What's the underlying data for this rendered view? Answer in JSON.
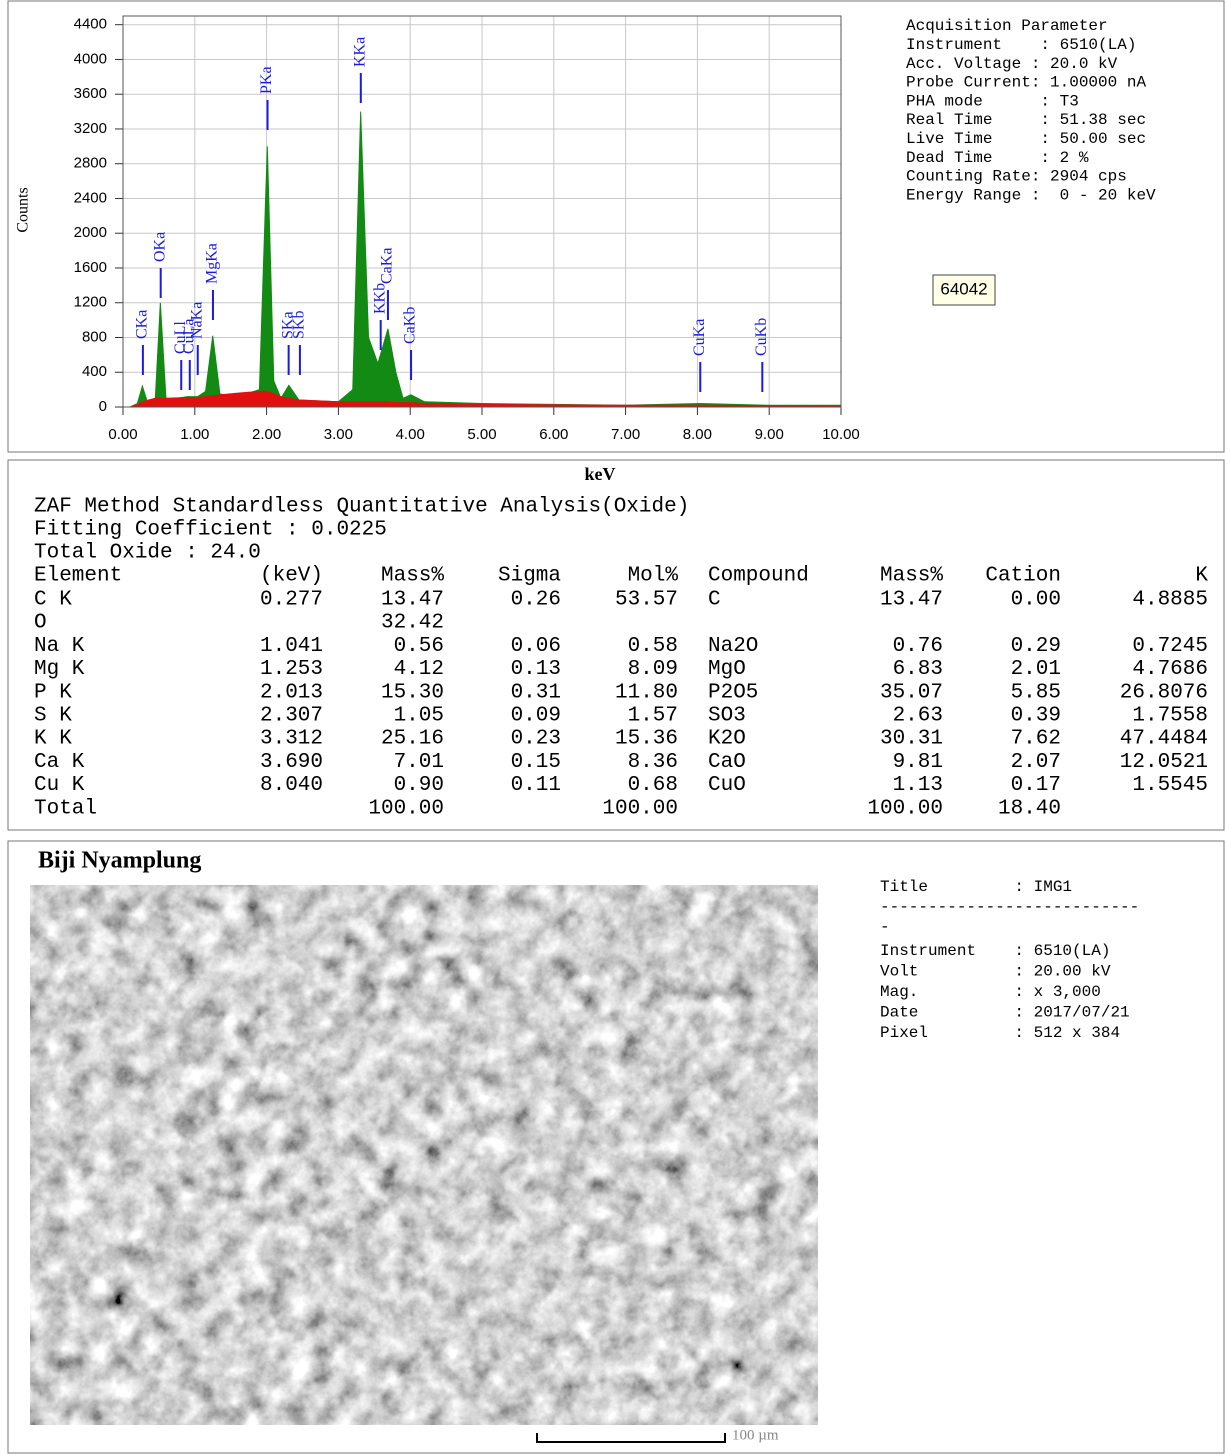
{
  "chart_data": {
    "type": "area",
    "xlabel": "keV",
    "ylabel": "Counts",
    "x": [
      0.1,
      0.2,
      0.27,
      0.35,
      0.45,
      0.52,
      0.6,
      0.9,
      1.04,
      1.15,
      1.25,
      1.35,
      1.6,
      1.9,
      2.01,
      2.1,
      2.2,
      2.31,
      2.45,
      3.0,
      3.2,
      3.31,
      3.42,
      3.55,
      3.69,
      3.8,
      3.9,
      4.01,
      4.2,
      5,
      6,
      7,
      8.04,
      9,
      10
    ],
    "series": [
      {
        "color": "#138a13",
        "values": [
          0,
          40,
          240,
          30,
          100,
          1200,
          80,
          120,
          120,
          180,
          820,
          150,
          120,
          200,
          3000,
          300,
          100,
          250,
          80,
          60,
          200,
          3400,
          800,
          500,
          900,
          400,
          100,
          140,
          60,
          40,
          30,
          20,
          40,
          20,
          20
        ]
      },
      {
        "color": "#e01010",
        "values": [
          0,
          30,
          60,
          80,
          100,
          100,
          100,
          110,
          110,
          120,
          130,
          140,
          160,
          180,
          180,
          150,
          120,
          100,
          80,
          60,
          60,
          60,
          60,
          60,
          60,
          50,
          50,
          50,
          40,
          30,
          25,
          20,
          20,
          15,
          10
        ]
      }
    ],
    "xlim": [
      0,
      10
    ],
    "xticks": [
      {
        "value": 0,
        "label": "0.00"
      },
      {
        "value": 1,
        "label": "1.00"
      },
      {
        "value": 2,
        "label": "2.00"
      },
      {
        "value": 3,
        "label": "3.00"
      },
      {
        "value": 4,
        "label": "4.00"
      },
      {
        "value": 5,
        "label": "5.00"
      },
      {
        "value": 6,
        "label": "6.00"
      },
      {
        "value": 7,
        "label": "7.00"
      },
      {
        "value": 8,
        "label": "8.00"
      },
      {
        "value": 9,
        "label": "9.00"
      },
      {
        "value": 10,
        "label": "10.00"
      }
    ],
    "ylim": [
      0,
      4500
    ],
    "yticks": [
      0,
      400,
      800,
      1200,
      1600,
      2000,
      2400,
      2800,
      3200,
      3600,
      4000,
      4400
    ],
    "grid": true,
    "annotations": [
      {
        "label": "CKa",
        "x": 0.277
      },
      {
        "label": "OKa",
        "x": 0.525
      },
      {
        "label": "CuLl",
        "x": 0.811
      },
      {
        "label": "CuLa",
        "x": 0.93
      },
      {
        "label": "NaKa",
        "x": 1.041
      },
      {
        "label": "MgKa",
        "x": 1.253
      },
      {
        "label": "PKa",
        "x": 2.013
      },
      {
        "label": "SKa",
        "x": 2.307
      },
      {
        "label": "SKb",
        "x": 2.464
      },
      {
        "label": "KKa",
        "x": 3.312
      },
      {
        "label": "KKb",
        "x": 3.589
      },
      {
        "label": "CaKa",
        "x": 3.69
      },
      {
        "label": "CaKb",
        "x": 4.012
      },
      {
        "label": "CuKa",
        "x": 8.04
      },
      {
        "label": "CuKb",
        "x": 8.904
      }
    ],
    "counter": "64042"
  },
  "acquisition": [
    "Acquisition Parameter",
    "Instrument    : 6510(LA)",
    "Acc. Voltage : 20.0 kV",
    "Probe Current: 1.00000 nA",
    "PHA mode      : T3",
    "Real Time     : 51.38 sec",
    "Live Time     : 50.00 sec",
    "Dead Time     : 2 %",
    "Counting Rate: 2904 cps",
    "Energy Range :  0 - 20 keV"
  ],
  "analysis": {
    "title": [
      "ZAF Method Standardless Quantitative Analysis(Oxide)",
      "Fitting Coefficient : 0.0225",
      "Total Oxide : 24.0"
    ],
    "header": [
      "Element",
      "(keV)",
      "Mass%",
      "Sigma",
      "Mol%",
      "Compound",
      "Mass%",
      "Cation",
      "K"
    ],
    "rows": [
      [
        "C K",
        "0.277",
        "13.47",
        "0.26",
        "53.57",
        "C",
        "13.47",
        "0.00",
        "4.8885"
      ],
      [
        "O",
        null,
        "32.42",
        null,
        null,
        null,
        null,
        null,
        null
      ],
      [
        "Na K",
        "1.041",
        "0.56",
        "0.06",
        "0.58",
        "Na2O",
        "0.76",
        "0.29",
        "0.7245"
      ],
      [
        "Mg K",
        "1.253",
        "4.12",
        "0.13",
        "8.09",
        "MgO",
        "6.83",
        "2.01",
        "4.7686"
      ],
      [
        "P K",
        "2.013",
        "15.30",
        "0.31",
        "11.80",
        "P2O5",
        "35.07",
        "5.85",
        "26.8076"
      ],
      [
        "S K",
        "2.307",
        "1.05",
        "0.09",
        "1.57",
        "SO3",
        "2.63",
        "0.39",
        "1.7558"
      ],
      [
        "K K",
        "3.312",
        "25.16",
        "0.23",
        "15.36",
        "K2O",
        "30.31",
        "7.62",
        "47.4484"
      ],
      [
        "Ca K",
        "3.690",
        "7.01",
        "0.15",
        "8.36",
        "CaO",
        "9.81",
        "2.07",
        "12.0521"
      ],
      [
        "Cu K",
        "8.040",
        "0.90",
        "0.11",
        "0.68",
        "CuO",
        "1.13",
        "0.17",
        "1.5545"
      ],
      [
        "Total",
        null,
        "100.00",
        null,
        "100.00",
        null,
        "100.00",
        "18.40",
        null
      ]
    ]
  },
  "image": {
    "title": "Biji Nyamplung",
    "scale": "100 µm",
    "info": [
      "Title         : IMG1",
      "---------------------------",
      "-",
      "Instrument    : 6510(LA)",
      "Volt          : 20.00 kV",
      "Mag.          : x 3,000",
      "Date          : 2017/07/21",
      "Pixel         : 512 x 384"
    ]
  }
}
